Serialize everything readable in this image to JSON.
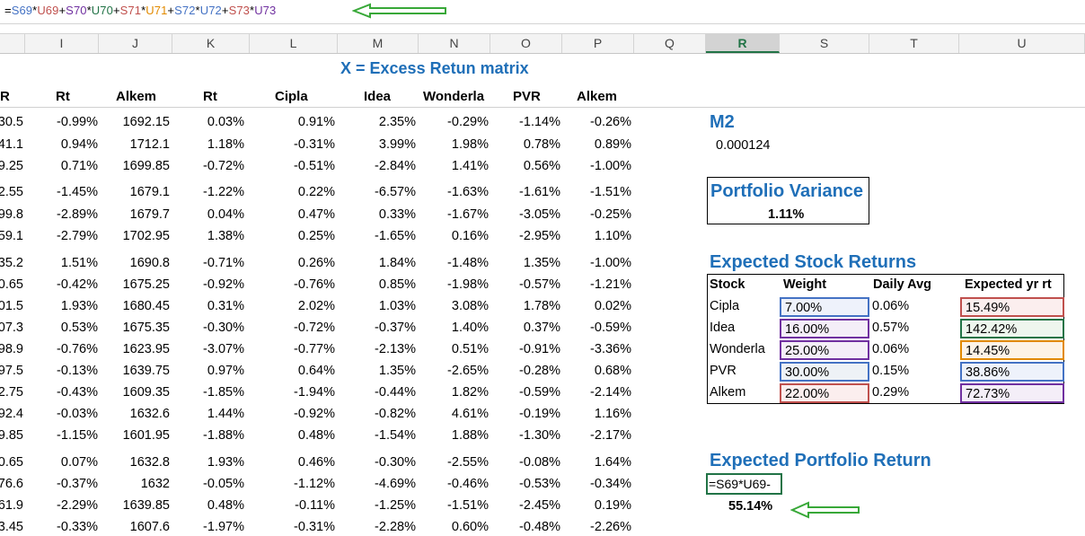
{
  "formula_bar": {
    "parts": [
      "=",
      "S69",
      "*",
      "U69",
      "+",
      "S70",
      "*",
      "U70",
      "+",
      "S71",
      "*",
      "U71",
      "+",
      "S72",
      "*",
      "U72",
      "+",
      "S73",
      "*",
      "U73"
    ],
    "colors": [
      "#000000",
      "#4472c4",
      "#000000",
      "#c0504d",
      "#000000",
      "#7030a0",
      "#000000",
      "#217346",
      "#000000",
      "#c0504d",
      "#000000",
      "#e28a00",
      "#000000",
      "#4472c4",
      "#000000",
      "#4472c4",
      "#000000",
      "#c0504d",
      "#000000",
      "#7030a0"
    ]
  },
  "columns": [
    "I",
    "J",
    "K",
    "L",
    "M",
    "N",
    "O",
    "P",
    "Q",
    "R",
    "S",
    "T",
    "U"
  ],
  "active_column": "R",
  "matrix_title": "X = Excess Retun matrix",
  "headers": [
    "R",
    "Rt",
    "Alkem",
    "Rt",
    "Cipla",
    "Idea",
    "Wonderla",
    "PVR",
    "Alkem"
  ],
  "rows": [
    [
      "30.5",
      "-0.99%",
      "1692.15",
      "0.03%",
      "0.91%",
      "2.35%",
      "-0.29%",
      "-1.14%",
      "-0.26%"
    ],
    [
      "41.1",
      "0.94%",
      "1712.1",
      "1.18%",
      "-0.31%",
      "3.99%",
      "1.98%",
      "0.78%",
      "0.89%"
    ],
    [
      "9.25",
      "0.71%",
      "1699.85",
      "-0.72%",
      "-0.51%",
      "-2.84%",
      "1.41%",
      "0.56%",
      "-1.00%"
    ],
    [
      "2.55",
      "-1.45%",
      "1679.1",
      "-1.22%",
      "0.22%",
      "-6.57%",
      "-1.63%",
      "-1.61%",
      "-1.51%"
    ],
    [
      "99.8",
      "-2.89%",
      "1679.7",
      "0.04%",
      "0.47%",
      "0.33%",
      "-1.67%",
      "-3.05%",
      "-0.25%"
    ],
    [
      "59.1",
      "-2.79%",
      "1702.95",
      "1.38%",
      "0.25%",
      "-1.65%",
      "0.16%",
      "-2.95%",
      "1.10%"
    ],
    [
      "35.2",
      "1.51%",
      "1690.8",
      "-0.71%",
      "0.26%",
      "1.84%",
      "-1.48%",
      "1.35%",
      "-1.00%"
    ],
    "placeholder-row-8",
    [
      "01.5",
      "1.93%",
      "1680.45",
      "0.31%",
      "2.02%",
      "1.03%",
      "3.08%",
      "1.78%",
      "0.02%"
    ],
    [
      "07.3",
      "0.53%",
      "1675.35",
      "-0.30%",
      "-0.72%",
      "-0.37%",
      "1.40%",
      "0.37%",
      "-0.59%"
    ],
    [
      "98.9",
      "-0.76%",
      "1623.95",
      "-3.07%",
      "-0.77%",
      "-2.13%",
      "0.51%",
      "-0.91%",
      "-3.36%"
    ],
    [
      "97.5",
      "-0.13%",
      "1639.75",
      "0.97%",
      "0.64%",
      "1.35%",
      "-2.65%",
      "-0.28%",
      "0.68%"
    ],
    [
      "2.75",
      "-0.43%",
      "1609.35",
      "-1.85%",
      "-1.94%",
      "-0.44%",
      "1.82%",
      "-0.59%",
      "-2.14%"
    ],
    [
      "92.4",
      "-0.03%",
      "1632.6",
      "1.44%",
      "-0.92%",
      "-0.82%",
      "4.61%",
      "-0.19%",
      "1.16%"
    ],
    [
      "9.85",
      "-1.15%",
      "1601.95",
      "-1.88%",
      "0.48%",
      "-1.54%",
      "1.88%",
      "-1.30%",
      "-2.17%"
    ],
    [
      "0.65",
      "0.07%",
      "1632.8",
      "1.93%",
      "0.46%",
      "-0.30%",
      "-2.55%",
      "-0.08%",
      "1.64%"
    ],
    [
      "76.6",
      "-0.37%",
      "1632",
      "-0.05%",
      "-1.12%",
      "-4.69%",
      "-0.46%",
      "-0.53%",
      "-0.34%"
    ],
    [
      "61.9",
      "-2.29%",
      "1639.85",
      "0.48%",
      "-0.11%",
      "-1.25%",
      "-1.51%",
      "-2.45%",
      "0.19%"
    ],
    [
      "3.45",
      "-0.33%",
      "1607.6",
      "-1.97%",
      "-0.31%",
      "-2.28%",
      "0.60%",
      "-0.48%",
      "-2.26%"
    ]
  ],
  "row8": [
    "0.65",
    "-0.42%",
    "1675.25",
    "-0.92%",
    "-0.76%",
    "0.85%",
    "-1.98%",
    "-0.57%",
    "-1.21%"
  ],
  "m2": {
    "label": "M2",
    "value": "0.000124"
  },
  "portfolio_variance": {
    "label": "Portfolio Variance",
    "value": "1.11%"
  },
  "expected_stock_returns": {
    "title": "Expected Stock Returns",
    "headers": [
      "Stock",
      "Weight",
      "Daily Avg",
      "Expected yr rt"
    ],
    "rows": [
      [
        "Cipla",
        "7.00%",
        "0.06%",
        "15.49%"
      ],
      [
        "Idea",
        "16.00%",
        "0.57%",
        "142.42%"
      ],
      [
        "Wonderla",
        "25.00%",
        "0.06%",
        "14.45%"
      ],
      [
        "PVR",
        "30.00%",
        "0.15%",
        "38.86%"
      ],
      [
        "Alkem",
        "22.00%",
        "0.29%",
        "72.73%"
      ]
    ]
  },
  "expected_portfolio_return": {
    "title": "Expected Portfolio Return",
    "edit_text": "=S69*U69-",
    "value": "55.14%"
  }
}
